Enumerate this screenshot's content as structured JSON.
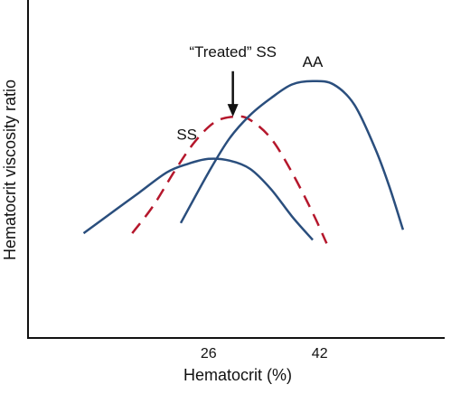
{
  "chart_data": {
    "type": "line",
    "title": "",
    "xlabel": "Hematocrit (%)",
    "ylabel": "Hematocrit viscosity ratio",
    "xlim": [
      0,
      60
    ],
    "ylim": [
      0,
      10
    ],
    "x_ticks": [
      26,
      42
    ],
    "y_ticks": [],
    "grid": false,
    "legend": "none",
    "series": [
      {
        "name": "SS",
        "color": "#2a4e7d",
        "dash": "solid",
        "x": [
          8,
          12,
          16,
          20,
          23,
          26,
          29,
          32,
          35,
          38,
          41
        ],
        "y": [
          3.1,
          3.7,
          4.3,
          4.9,
          5.15,
          5.3,
          5.25,
          5.0,
          4.4,
          3.6,
          2.9
        ]
      },
      {
        "name": "“Treated” SS",
        "color": "#b5172c",
        "dash": "dashed",
        "x": [
          15,
          18,
          21,
          24,
          27,
          30,
          32,
          35,
          38,
          41,
          43
        ],
        "y": [
          3.1,
          3.9,
          4.9,
          5.8,
          6.4,
          6.55,
          6.45,
          5.9,
          4.9,
          3.7,
          2.8
        ]
      },
      {
        "name": "AA",
        "color": "#2a4e7d",
        "dash": "solid",
        "x": [
          22,
          26,
          29,
          32,
          35,
          38,
          41,
          44,
          47,
          50,
          52,
          54
        ],
        "y": [
          3.4,
          4.9,
          5.9,
          6.6,
          7.1,
          7.5,
          7.6,
          7.5,
          6.9,
          5.6,
          4.5,
          3.2
        ]
      }
    ],
    "annotations": {
      "treated_arrow_label": "“Treated” SS",
      "arrow_from": {
        "x": 29.5,
        "y": 8.0
      },
      "arrow_to": {
        "x": 29.5,
        "y": 6.6
      }
    }
  }
}
